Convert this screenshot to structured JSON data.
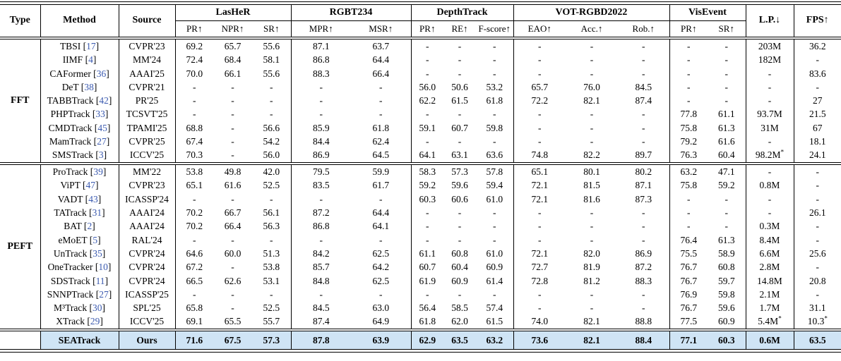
{
  "table": {
    "columns": {
      "type": "Type",
      "method": "Method",
      "source": "Source",
      "groups": [
        {
          "label": "LasHeR",
          "subs": [
            "PR↑",
            "NPR↑",
            "SR↑"
          ]
        },
        {
          "label": "RGBT234",
          "subs": [
            "MPR↑",
            "MSR↑"
          ]
        },
        {
          "label": "DepthTrack",
          "subs": [
            "PR↑",
            "RE↑",
            "F-score↑"
          ]
        },
        {
          "label": "VOT-RGBD2022",
          "subs": [
            "EAO↑",
            "Acc.↑",
            "Rob.↑"
          ]
        },
        {
          "label": "VisEvent",
          "subs": [
            "PR↑",
            "SR↑"
          ]
        }
      ],
      "lp": "L.P.↓",
      "fps": "FPS↑"
    },
    "sections": [
      {
        "type": "FFT",
        "rows": [
          {
            "method": "TBSI",
            "cite": "17",
            "source": "CVPR'23",
            "values": [
              "69.2",
              "65.7",
              "55.6",
              "87.1",
              "63.7",
              "-",
              "-",
              "-",
              "-",
              "-",
              "-",
              "-",
              "-",
              "203M",
              "36.2"
            ]
          },
          {
            "method": "IIMF",
            "cite": "4",
            "source": "MM'24",
            "values": [
              "72.4",
              "68.4",
              "58.1",
              "86.8",
              "64.4",
              "-",
              "-",
              "-",
              "-",
              "-",
              "-",
              "-",
              "-",
              "182M",
              "-"
            ]
          },
          {
            "method": "CAFormer",
            "cite": "36",
            "source": "AAAI'25",
            "values": [
              "70.0",
              "66.1",
              "55.6",
              "88.3",
              "66.4",
              "-",
              "-",
              "-",
              "-",
              "-",
              "-",
              "-",
              "-",
              "-",
              "83.6"
            ]
          },
          {
            "method": "DeT",
            "cite": "38",
            "source": "CVPR'21",
            "values": [
              "-",
              "-",
              "-",
              "-",
              "-",
              "56.0",
              "50.6",
              "53.2",
              "65.7",
              "76.0",
              "84.5",
              "-",
              "-",
              "-",
              "-"
            ]
          },
          {
            "method": "TABBTrack",
            "cite": "42",
            "source": "PR'25",
            "values": [
              "-",
              "-",
              "-",
              "-",
              "-",
              "62.2",
              "61.5",
              "61.8",
              "72.2",
              "82.1",
              "87.4",
              "-",
              "-",
              "-",
              "27"
            ]
          },
          {
            "method": "PHPTrack",
            "cite": "33",
            "source": "TCSVT'25",
            "values": [
              "-",
              "-",
              "-",
              "-",
              "-",
              "-",
              "-",
              "-",
              "-",
              "-",
              "-",
              "77.8",
              "61.1",
              "93.7M",
              "21.5"
            ]
          },
          {
            "method": "CMDTrack",
            "cite": "45",
            "source": "TPAMI'25",
            "values": [
              "68.8",
              "-",
              "56.6",
              "85.9",
              "61.8",
              "59.1",
              "60.7",
              "59.8",
              "-",
              "-",
              "-",
              "75.8",
              "61.3",
              "31M",
              "67"
            ]
          },
          {
            "method": "MamTrack",
            "cite": "27",
            "source": "CVPR'25",
            "values": [
              "67.4",
              "-",
              "54.2",
              "84.4",
              "62.4",
              "-",
              "-",
              "-",
              "-",
              "-",
              "-",
              "79.2",
              "61.6",
              "-",
              "18.1"
            ]
          },
          {
            "method": "SMSTrack",
            "cite": "3",
            "source": "ICCV'25",
            "values": [
              "70.3",
              "-",
              "56.0",
              "86.9",
              "64.5",
              "64.1",
              "63.1",
              "63.6",
              "74.8",
              "82.2",
              "89.7",
              "76.3",
              "60.4",
              "98.2M*",
              "24.1"
            ]
          }
        ]
      },
      {
        "type": "PEFT",
        "rows": [
          {
            "method": "ProTrack",
            "cite": "39",
            "source": "MM'22",
            "values": [
              "53.8",
              "49.8",
              "42.0",
              "79.5",
              "59.9",
              "58.3",
              "57.3",
              "57.8",
              "65.1",
              "80.1",
              "80.2",
              "63.2",
              "47.1",
              "-",
              "-"
            ]
          },
          {
            "method": "ViPT",
            "cite": "47",
            "source": "CVPR'23",
            "values": [
              "65.1",
              "61.6",
              "52.5",
              "83.5",
              "61.7",
              "59.2",
              "59.6",
              "59.4",
              "72.1",
              "81.5",
              "87.1",
              "75.8",
              "59.2",
              "0.8M",
              "-"
            ]
          },
          {
            "method": "VADT",
            "cite": "43",
            "source": "ICASSP'24",
            "values": [
              "-",
              "-",
              "-",
              "-",
              "-",
              "60.3",
              "60.6",
              "61.0",
              "72.1",
              "81.6",
              "87.3",
              "-",
              "-",
              "-",
              "-"
            ]
          },
          {
            "method": "TATrack",
            "cite": "31",
            "source": "AAAI'24",
            "values": [
              "70.2",
              "66.7",
              "56.1",
              "87.2",
              "64.4",
              "-",
              "-",
              "-",
              "-",
              "-",
              "-",
              "-",
              "-",
              "-",
              "26.1"
            ]
          },
          {
            "method": "BAT",
            "cite": "2",
            "source": "AAAI'24",
            "values": [
              "70.2",
              "66.4",
              "56.3",
              "86.8",
              "64.1",
              "-",
              "-",
              "-",
              "-",
              "-",
              "-",
              "-",
              "-",
              "0.3M",
              "-"
            ]
          },
          {
            "method": "eMoET",
            "cite": "5",
            "source": "RAL'24",
            "values": [
              "-",
              "-",
              "-",
              "-",
              "-",
              "-",
              "-",
              "-",
              "-",
              "-",
              "-",
              "76.4",
              "61.3",
              "8.4M",
              "-"
            ]
          },
          {
            "method": "UnTrack",
            "cite": "35",
            "source": "CVPR'24",
            "values": [
              "64.6",
              "60.0",
              "51.3",
              "84.2",
              "62.5",
              "61.1",
              "60.8",
              "61.0",
              "72.1",
              "82.0",
              "86.9",
              "75.5",
              "58.9",
              "6.6M",
              "25.6"
            ]
          },
          {
            "method": "OneTracker",
            "cite": "10",
            "source": "CVPR'24",
            "values": [
              "67.2",
              "-",
              "53.8",
              "85.7",
              "64.2",
              "60.7",
              "60.4",
              "60.9",
              "72.7",
              "81.9",
              "87.2",
              "76.7",
              "60.8",
              "2.8M",
              "-"
            ]
          },
          {
            "method": "SDSTrack",
            "cite": "11",
            "source": "CVPR'24",
            "values": [
              "66.5",
              "62.6",
              "53.1",
              "84.8",
              "62.5",
              "61.9",
              "60.9",
              "61.4",
              "72.8",
              "81.2",
              "88.3",
              "76.7",
              "59.7",
              "14.8M",
              "20.8"
            ]
          },
          {
            "method": "SNNPTrack",
            "cite": "27",
            "source": "ICASSP'25",
            "values": [
              "-",
              "-",
              "-",
              "-",
              "-",
              "-",
              "-",
              "-",
              "-",
              "-",
              "-",
              "76.9",
              "59.8",
              "2.1M",
              "-"
            ]
          },
          {
            "method": "M³Track",
            "cite": "30",
            "source": "SPL'25",
            "values": [
              "65.8",
              "-",
              "52.5",
              "84.5",
              "63.0",
              "56.4",
              "58.5",
              "57.4",
              "-",
              "-",
              "-",
              "76.7",
              "59.6",
              "1.7M",
              "31.1"
            ]
          },
          {
            "method": "XTrack",
            "cite": "29",
            "source": "ICCV'25",
            "values": [
              "69.1",
              "65.5",
              "55.7",
              "87.4",
              "64.9",
              "61.8",
              "62.0",
              "61.5",
              "74.0",
              "82.1",
              "88.8",
              "77.5",
              "60.9",
              "5.4M*",
              "10.3*"
            ]
          }
        ]
      }
    ],
    "highlight_row": {
      "method": "SEATrack",
      "source": "Ours",
      "values": [
        "71.6",
        "67.5",
        "57.3",
        "87.8",
        "63.9",
        "62.9",
        "63.5",
        "63.2",
        "73.6",
        "82.1",
        "88.4",
        "77.1",
        "60.3",
        "0.6M",
        "63.5"
      ]
    },
    "colors": {
      "highlight_background": "#cfe4f5",
      "citation_blue": "#3c5bb0"
    }
  }
}
